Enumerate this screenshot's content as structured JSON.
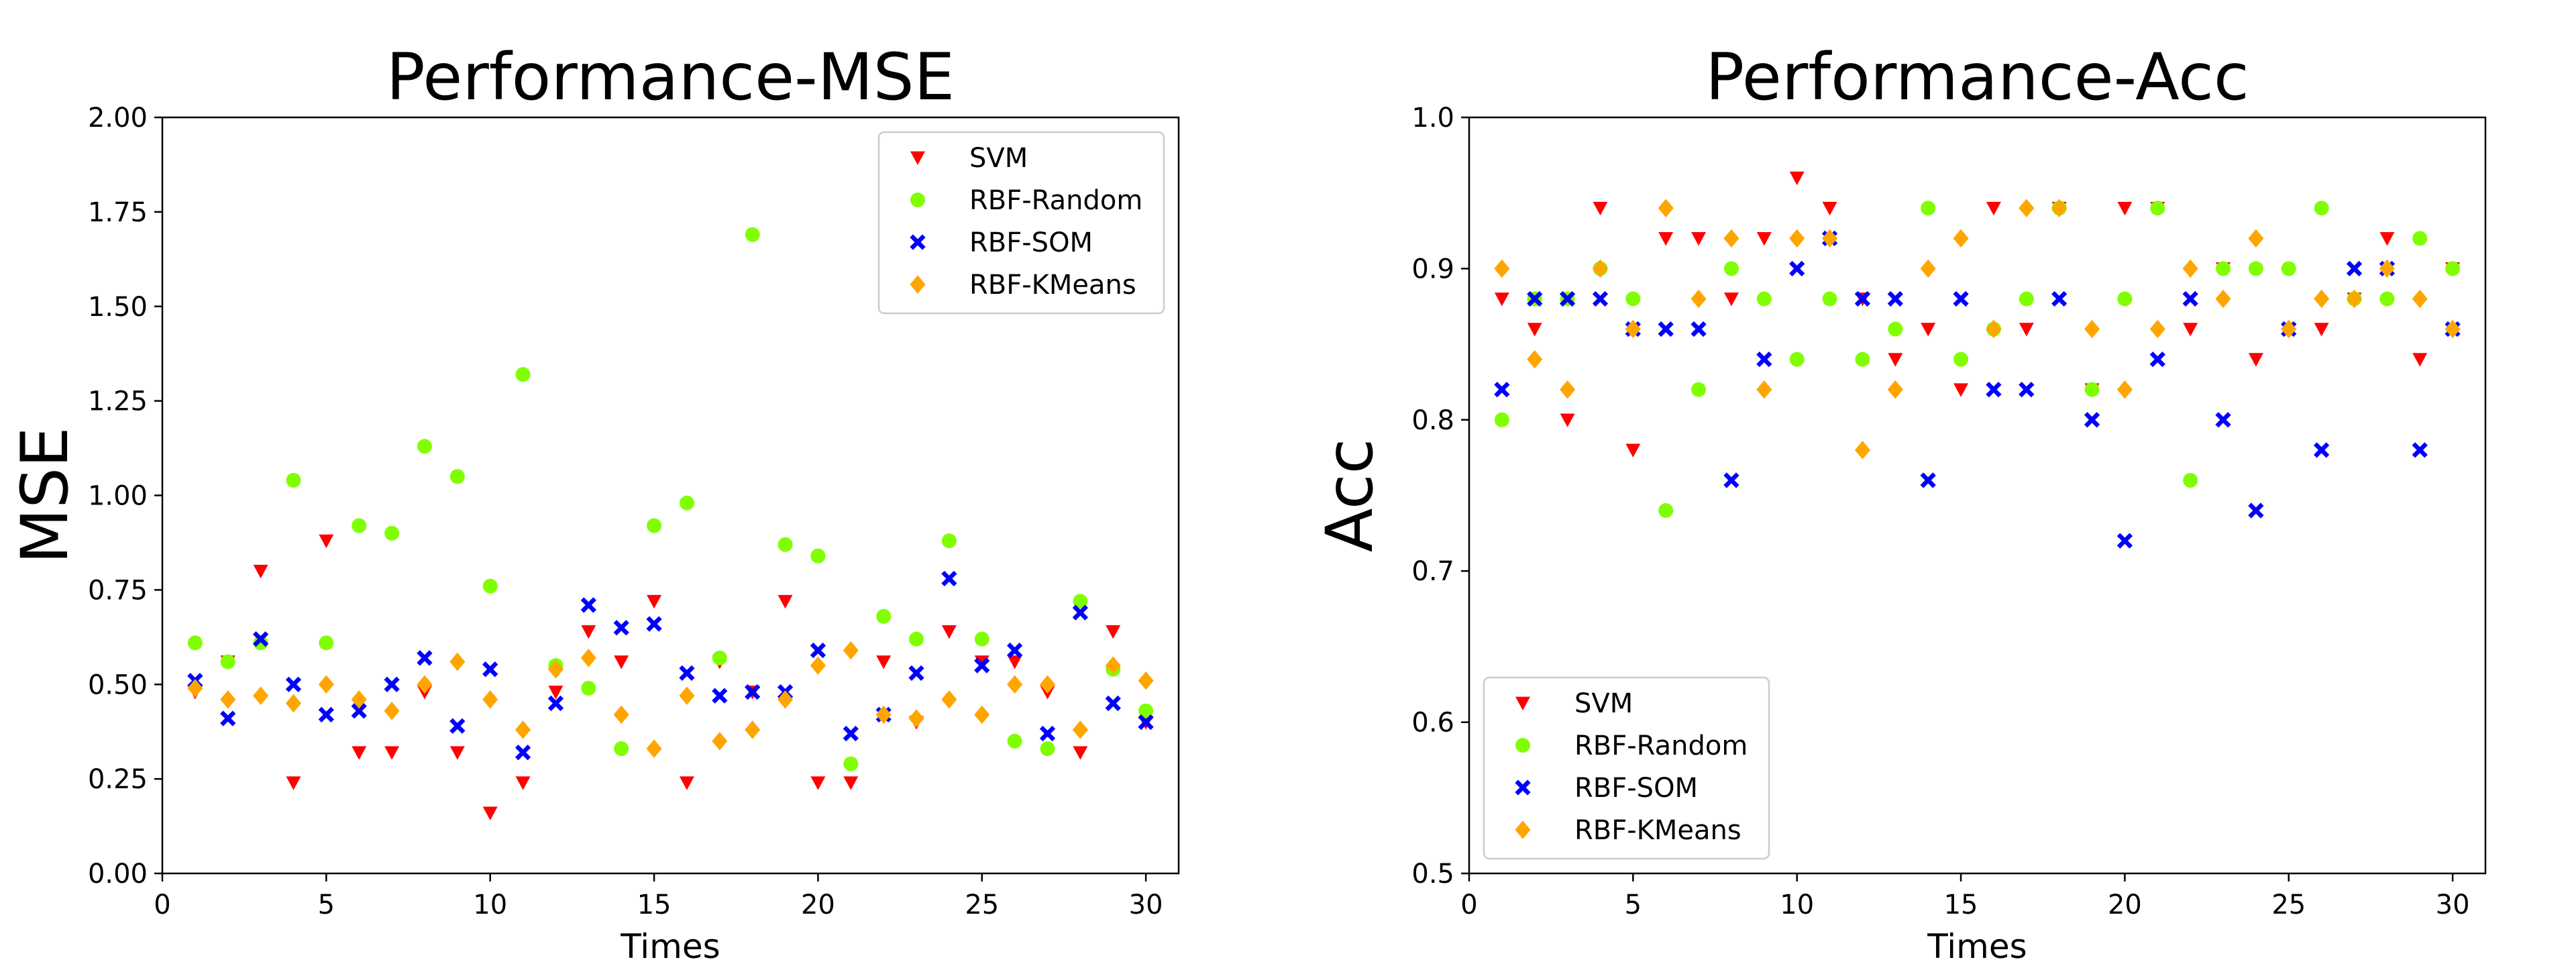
{
  "chart_data": [
    {
      "type": "scatter",
      "title": "Performance-MSE",
      "xlabel": "Times",
      "ylabel": "MSE",
      "xlim": [
        0,
        31
      ],
      "ylim": [
        0.0,
        2.0
      ],
      "xticks": [
        "0",
        "5",
        "10",
        "15",
        "20",
        "25",
        "30"
      ],
      "yticks": [
        "0.00",
        "0.25",
        "0.50",
        "0.75",
        "1.00",
        "1.25",
        "1.50",
        "1.75",
        "2.00"
      ],
      "grid": false,
      "legend_position": "top-right",
      "x": [
        1,
        2,
        3,
        4,
        5,
        6,
        7,
        8,
        9,
        10,
        11,
        12,
        13,
        14,
        15,
        16,
        17,
        18,
        19,
        20,
        21,
        22,
        23,
        24,
        25,
        26,
        27,
        28,
        29,
        30
      ],
      "series": [
        {
          "name": "SVM",
          "color": "#ff0000",
          "marker": "triangle-down",
          "values": [
            0.48,
            0.56,
            0.8,
            0.24,
            0.88,
            0.32,
            0.32,
            0.48,
            0.32,
            0.16,
            0.24,
            0.48,
            0.64,
            0.56,
            0.72,
            0.24,
            0.56,
            0.48,
            0.72,
            0.24,
            0.24,
            0.56,
            0.4,
            0.64,
            0.56,
            0.56,
            0.48,
            0.32,
            0.64,
            0.4
          ]
        },
        {
          "name": "RBF-Random",
          "color": "#7fff00",
          "marker": "circle",
          "values": [
            0.61,
            0.56,
            0.61,
            1.04,
            0.61,
            0.92,
            0.9,
            1.13,
            1.05,
            0.76,
            1.32,
            0.55,
            0.49,
            0.33,
            0.92,
            0.98,
            0.57,
            1.69,
            0.87,
            0.84,
            0.29,
            0.68,
            0.62,
            0.88,
            0.62,
            0.35,
            0.33,
            0.72,
            0.54,
            0.43
          ]
        },
        {
          "name": "RBF-SOM",
          "color": "#0000ff",
          "marker": "x",
          "values": [
            0.51,
            0.41,
            0.62,
            0.5,
            0.42,
            0.43,
            0.5,
            0.57,
            0.39,
            0.54,
            0.32,
            0.45,
            0.71,
            0.65,
            0.66,
            0.53,
            0.47,
            0.48,
            0.48,
            0.59,
            0.37,
            0.42,
            0.53,
            0.78,
            0.55,
            0.59,
            0.37,
            0.69,
            0.45,
            0.4
          ]
        },
        {
          "name": "RBF-KMeans",
          "color": "#ffa500",
          "marker": "diamond",
          "values": [
            0.49,
            0.46,
            0.47,
            0.45,
            0.5,
            0.46,
            0.43,
            0.5,
            0.56,
            0.46,
            0.38,
            0.54,
            0.57,
            0.42,
            0.33,
            0.47,
            0.35,
            0.38,
            0.46,
            0.55,
            0.59,
            0.42,
            0.41,
            0.46,
            0.42,
            0.5,
            0.5,
            0.38,
            0.55,
            0.51
          ]
        }
      ]
    },
    {
      "type": "scatter",
      "title": "Performance-Acc",
      "xlabel": "Times",
      "ylabel": "Acc",
      "xlim": [
        0,
        31
      ],
      "ylim": [
        0.5,
        1.0
      ],
      "xticks": [
        "0",
        "5",
        "10",
        "15",
        "20",
        "25",
        "30"
      ],
      "yticks": [
        "0.5",
        "0.6",
        "0.7",
        "0.8",
        "0.9",
        "1.0"
      ],
      "grid": false,
      "legend_position": "bottom-left",
      "x": [
        1,
        2,
        3,
        4,
        5,
        6,
        7,
        8,
        9,
        10,
        11,
        12,
        13,
        14,
        15,
        16,
        17,
        18,
        19,
        20,
        21,
        22,
        23,
        24,
        25,
        26,
        27,
        28,
        29,
        30
      ],
      "series": [
        {
          "name": "SVM",
          "color": "#ff0000",
          "marker": "triangle-down",
          "values": [
            0.88,
            0.86,
            0.8,
            0.94,
            0.78,
            0.92,
            0.92,
            0.88,
            0.92,
            0.96,
            0.94,
            0.88,
            0.84,
            0.86,
            0.82,
            0.94,
            0.86,
            0.94,
            0.82,
            0.94,
            0.94,
            0.86,
            0.9,
            0.84,
            0.86,
            0.86,
            0.88,
            0.92,
            0.84,
            0.9
          ]
        },
        {
          "name": "RBF-Random",
          "color": "#7fff00",
          "marker": "circle",
          "values": [
            0.8,
            0.88,
            0.88,
            0.9,
            0.88,
            0.74,
            0.82,
            0.9,
            0.88,
            0.84,
            0.88,
            0.84,
            0.86,
            0.94,
            0.84,
            0.86,
            0.88,
            0.94,
            0.82,
            0.88,
            0.94,
            0.76,
            0.9,
            0.9,
            0.9,
            0.94,
            0.88,
            0.88,
            0.92,
            0.9
          ]
        },
        {
          "name": "RBF-SOM",
          "color": "#0000ff",
          "marker": "x",
          "values": [
            0.82,
            0.88,
            0.88,
            0.88,
            0.86,
            0.86,
            0.86,
            0.76,
            0.84,
            0.9,
            0.92,
            0.88,
            0.88,
            0.76,
            0.88,
            0.82,
            0.82,
            0.88,
            0.8,
            0.72,
            0.84,
            0.88,
            0.8,
            0.74,
            0.86,
            0.78,
            0.9,
            0.9,
            0.78,
            0.86
          ]
        },
        {
          "name": "RBF-KMeans",
          "color": "#ffa500",
          "marker": "diamond",
          "values": [
            0.9,
            0.84,
            0.82,
            0.9,
            0.86,
            0.94,
            0.88,
            0.92,
            0.82,
            0.92,
            0.92,
            0.78,
            0.82,
            0.9,
            0.92,
            0.86,
            0.94,
            0.94,
            0.86,
            0.82,
            0.86,
            0.9,
            0.88,
            0.92,
            0.86,
            0.88,
            0.88,
            0.9,
            0.88,
            0.86
          ]
        }
      ]
    }
  ]
}
